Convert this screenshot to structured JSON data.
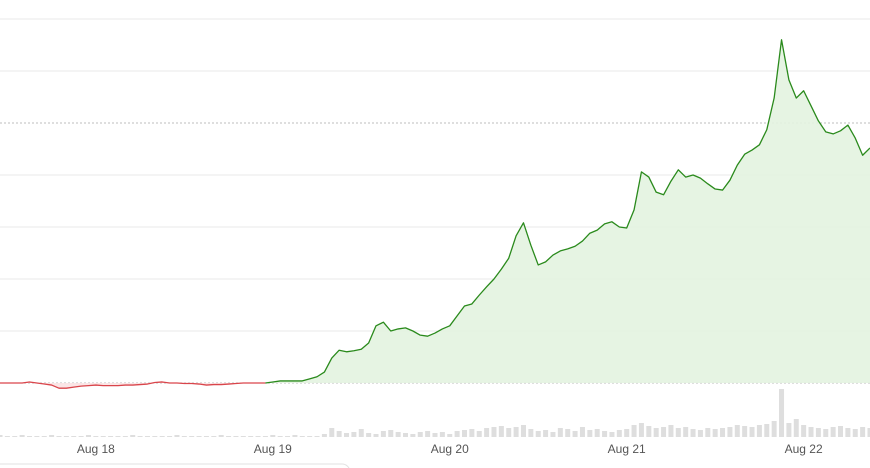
{
  "chart_data": {
    "type": "line",
    "xlim": [
      0,
      118
    ],
    "xticks": [
      {
        "value": 13,
        "label": "Aug 18"
      },
      {
        "value": 37,
        "label": "Aug 19"
      },
      {
        "value": 61,
        "label": "Aug 20"
      },
      {
        "value": 85,
        "label": "Aug 21"
      },
      {
        "value": 109,
        "label": "Aug 22"
      }
    ],
    "ylim": [
      -1,
      7.3
    ],
    "yticks": [
      0,
      1,
      2,
      3,
      4,
      5,
      6,
      7
    ],
    "dotted_yticks": [
      0,
      5
    ],
    "grid": true,
    "series": [
      {
        "color": "#d9454b",
        "fill": "#fbe3e4",
        "values": [
          0,
          0,
          0,
          0,
          0.02,
          0,
          -0.02,
          -0.04,
          -0.1,
          -0.1,
          -0.08,
          -0.06,
          -0.05,
          -0.04,
          -0.05,
          -0.05,
          -0.05,
          -0.04,
          -0.04,
          -0.03,
          -0.02,
          0.01,
          0.02,
          0,
          0,
          -0.01,
          -0.01,
          -0.02,
          -0.04,
          -0.03,
          -0.03,
          -0.02,
          -0.01,
          0,
          0,
          0,
          0,
          null,
          null,
          null,
          null,
          null,
          null,
          null,
          null,
          null,
          null,
          null,
          null,
          null,
          null,
          null,
          null,
          null,
          null,
          null,
          null,
          null,
          null,
          null,
          null,
          null,
          null,
          null,
          null,
          null,
          null,
          null,
          null,
          null,
          null,
          null,
          null,
          null,
          null,
          null,
          null,
          null,
          null,
          null,
          null,
          null,
          null,
          null,
          null,
          null,
          null,
          null,
          null,
          null,
          null,
          null,
          null,
          null,
          null,
          null,
          null,
          null,
          null,
          null,
          null,
          null,
          null,
          null,
          null,
          null,
          null,
          null,
          null,
          null,
          null,
          null,
          null,
          null,
          null,
          null,
          null,
          null,
          null
        ]
      },
      {
        "color": "#2a8a1c",
        "fill": "#e3f3e0",
        "values": [
          null,
          null,
          null,
          null,
          null,
          null,
          null,
          null,
          null,
          null,
          null,
          null,
          null,
          null,
          null,
          null,
          null,
          null,
          null,
          null,
          null,
          null,
          null,
          null,
          null,
          null,
          null,
          null,
          null,
          null,
          null,
          null,
          null,
          null,
          null,
          null,
          0,
          0.02,
          0.04,
          0.04,
          0.04,
          0.04,
          0.08,
          0.12,
          0.21,
          0.48,
          0.63,
          0.6,
          0.62,
          0.65,
          0.77,
          1.1,
          1.17,
          1.0,
          1.04,
          1.06,
          1.0,
          0.92,
          0.9,
          0.96,
          1.04,
          1.1,
          1.29,
          1.48,
          1.52,
          1.69,
          1.85,
          2.0,
          2.19,
          2.4,
          2.83,
          3.08,
          2.65,
          2.27,
          2.33,
          2.46,
          2.54,
          2.58,
          2.63,
          2.73,
          2.88,
          2.94,
          3.06,
          3.1,
          3.0,
          2.98,
          3.33,
          4.06,
          3.96,
          3.67,
          3.62,
          3.88,
          4.1,
          3.96,
          4.0,
          3.94,
          3.83,
          3.73,
          3.71,
          3.9,
          4.19,
          4.4,
          4.48,
          4.58,
          4.87,
          5.48,
          6.6,
          5.83,
          5.48,
          5.62,
          5.33,
          5.04,
          4.83,
          4.79,
          4.85,
          4.96,
          4.71,
          4.38,
          4.52
        ]
      }
    ],
    "volume": {
      "color": "#dedede",
      "ylim": [
        0,
        52
      ],
      "values": [
        2,
        1,
        1,
        2,
        1,
        1,
        1,
        2,
        1,
        1,
        1,
        1,
        2,
        1,
        1,
        1,
        1,
        1,
        2,
        1,
        1,
        1,
        1,
        1,
        2,
        1,
        1,
        1,
        1,
        1,
        2,
        1,
        1,
        1,
        1,
        1,
        1,
        2,
        1,
        1,
        2,
        1,
        1,
        1,
        3,
        9,
        6,
        4,
        5,
        8,
        4,
        3,
        6,
        7,
        5,
        4,
        3,
        5,
        6,
        4,
        5,
        3,
        6,
        7,
        8,
        6,
        9,
        10,
        11,
        9,
        10,
        12,
        8,
        6,
        7,
        5,
        9,
        8,
        6,
        10,
        7,
        8,
        6,
        5,
        7,
        8,
        12,
        14,
        11,
        9,
        10,
        12,
        9,
        10,
        8,
        7,
        9,
        8,
        9,
        10,
        12,
        11,
        10,
        12,
        13,
        16,
        48,
        14,
        18,
        12,
        10,
        9,
        8,
        10,
        11,
        9,
        8,
        10,
        9
      ]
    }
  }
}
